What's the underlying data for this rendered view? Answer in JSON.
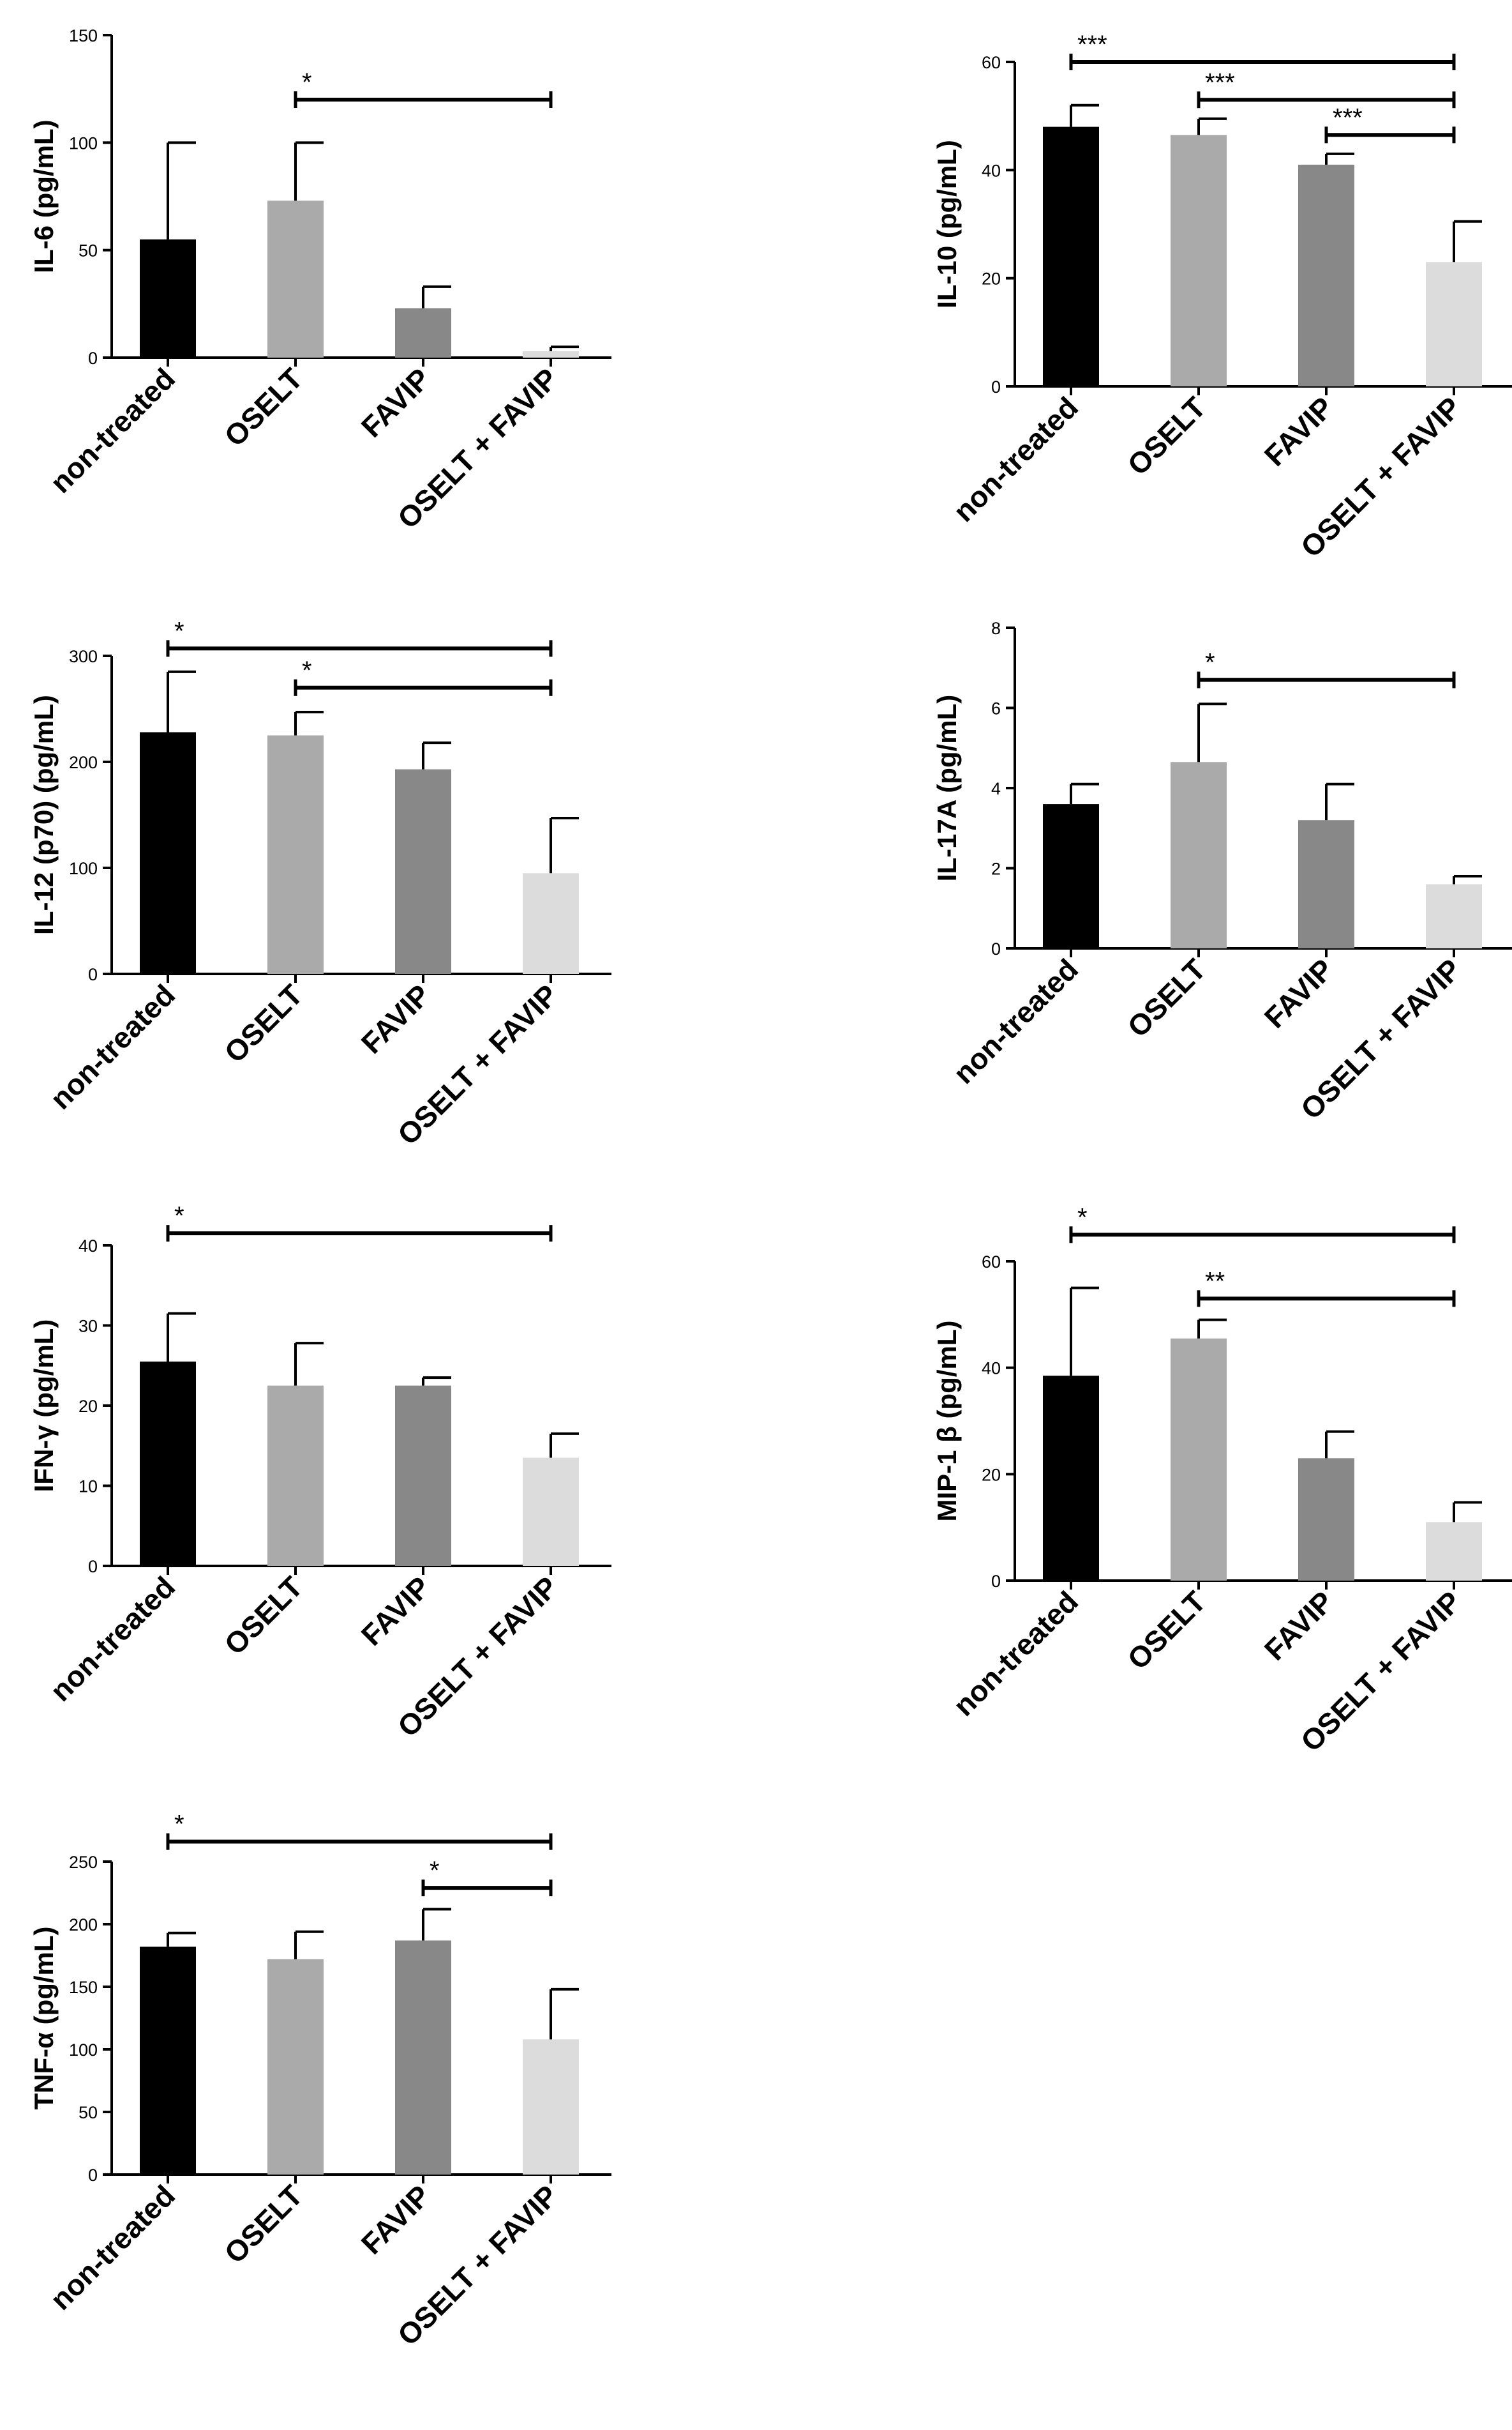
{
  "colors": {
    "non_treated": "#000000",
    "oselt": "#aaaaaa",
    "favip": "#888888",
    "combo": "#dcdcdc",
    "axis": "#000000"
  },
  "chart_data": [
    {
      "type": "bar",
      "ylabel": "IL-6 (pg/mL)",
      "categories": [
        "non-treated",
        "OSELT",
        "FAVIP",
        "OSELT + FAVIP"
      ],
      "values": [
        55,
        73,
        23,
        3
      ],
      "errors": [
        45,
        27,
        10,
        2
      ],
      "ylim": [
        0,
        150
      ],
      "yticks": [
        "0",
        "50",
        "100",
        "150"
      ],
      "significance": [
        {
          "from": "OSELT",
          "to": "OSELT + FAVIP",
          "y": 120,
          "label": "*"
        }
      ]
    },
    {
      "type": "bar",
      "ylabel": "IL-10 (pg/mL)",
      "categories": [
        "non-treated",
        "OSELT",
        "FAVIP",
        "OSELT + FAVIP"
      ],
      "values": [
        48,
        46.5,
        41,
        23
      ],
      "errors": [
        4,
        3,
        2,
        7.5
      ],
      "ylim": [
        0,
        60
      ],
      "yticks": [
        "0",
        "20",
        "40",
        "60"
      ],
      "significance": [
        {
          "from": "non-treated",
          "to": "OSELT + FAVIP",
          "y": 60,
          "label": "***"
        },
        {
          "from": "OSELT",
          "to": "OSELT + FAVIP",
          "y": 53,
          "label": "***"
        },
        {
          "from": "FAVIP",
          "to": "OSELT + FAVIP",
          "y": 46.5,
          "label": "***"
        }
      ]
    },
    {
      "type": "bar",
      "ylabel": "IL-12 (p70) (pg/mL)",
      "categories": [
        "non-treated",
        "OSELT",
        "FAVIP",
        "OSELT + FAVIP"
      ],
      "values": [
        228,
        225,
        193,
        95
      ],
      "errors": [
        57,
        22,
        25,
        52
      ],
      "ylim": [
        0,
        300
      ],
      "yticks": [
        "0",
        "100",
        "200",
        "300"
      ],
      "significance": [
        {
          "from": "non-treated",
          "to": "OSELT + FAVIP",
          "y": 307,
          "label": "*"
        },
        {
          "from": "OSELT",
          "to": "OSELT + FAVIP",
          "y": 270,
          "label": "*"
        }
      ]
    },
    {
      "type": "bar",
      "ylabel": "IL-17A (pg/mL)",
      "categories": [
        "non-treated",
        "OSELT",
        "FAVIP",
        "OSELT + FAVIP"
      ],
      "values": [
        3.6,
        4.65,
        3.2,
        1.6
      ],
      "errors": [
        0.5,
        1.45,
        0.9,
        0.2
      ],
      "ylim": [
        0,
        8
      ],
      "yticks": [
        "0",
        "2",
        "4",
        "6",
        "8"
      ],
      "significance": [
        {
          "from": "OSELT",
          "to": "OSELT + FAVIP",
          "y": 6.7,
          "label": "*"
        }
      ]
    },
    {
      "type": "bar",
      "ylabel": "IFN-γ (pg/mL)",
      "categories": [
        "non-treated",
        "OSELT",
        "FAVIP",
        "OSELT + FAVIP"
      ],
      "values": [
        25.5,
        22.5,
        22.5,
        13.5
      ],
      "errors": [
        6,
        5.3,
        1,
        3
      ],
      "ylim": [
        0,
        40
      ],
      "yticks": [
        "0",
        "10",
        "20",
        "30",
        "40"
      ],
      "significance": [
        {
          "from": "non-treated",
          "to": "OSELT + FAVIP",
          "y": 41.5,
          "label": "*"
        }
      ]
    },
    {
      "type": "bar",
      "ylabel": "MIP-1 β (pg/mL)",
      "categories": [
        "non-treated",
        "OSELT",
        "FAVIP",
        "OSELT + FAVIP"
      ],
      "values": [
        38.5,
        45.5,
        23,
        11
      ],
      "errors": [
        16.5,
        3.5,
        5,
        3.7
      ],
      "ylim": [
        0,
        60
      ],
      "yticks": [
        "0",
        "20",
        "40",
        "60"
      ],
      "significance": [
        {
          "from": "non-treated",
          "to": "OSELT + FAVIP",
          "y": 65,
          "label": "*"
        },
        {
          "from": "OSELT",
          "to": "OSELT + FAVIP",
          "y": 53,
          "label": "**"
        }
      ]
    },
    {
      "type": "bar",
      "ylabel": "TNF-α (pg/mL)",
      "categories": [
        "non-treated",
        "OSELT",
        "FAVIP",
        "OSELT + FAVIP"
      ],
      "values": [
        182,
        172,
        187,
        108
      ],
      "errors": [
        11,
        22,
        25,
        40
      ],
      "ylim": [
        0,
        250
      ],
      "yticks": [
        "0",
        "50",
        "100",
        "150",
        "200",
        "250"
      ],
      "significance": [
        {
          "from": "non-treated",
          "to": "OSELT + FAVIP",
          "y": 266,
          "label": "*"
        },
        {
          "from": "FAVIP",
          "to": "OSELT + FAVIP",
          "y": 229,
          "label": "*"
        }
      ]
    }
  ]
}
